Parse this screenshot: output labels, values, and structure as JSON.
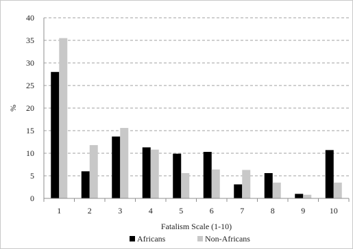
{
  "chart_data": {
    "type": "bar",
    "title": "",
    "xlabel": "Fatalism Scale (1-10)",
    "ylabel": "%",
    "categories": [
      "1",
      "2",
      "3",
      "4",
      "5",
      "6",
      "7",
      "8",
      "9",
      "10"
    ],
    "ylim": [
      0,
      40
    ],
    "yticks": [
      0,
      5,
      10,
      15,
      20,
      25,
      30,
      35,
      40
    ],
    "grid": "horizontal dashed",
    "legend_position": "bottom",
    "series": [
      {
        "name": "Africans",
        "color": "#000000",
        "values": [
          28.0,
          6.0,
          13.7,
          11.3,
          9.9,
          10.3,
          3.1,
          5.6,
          1.0,
          10.7
        ]
      },
      {
        "name": "Non-Africans",
        "color": "#c8c8c8",
        "values": [
          35.5,
          11.8,
          15.6,
          10.8,
          5.6,
          6.4,
          6.3,
          3.5,
          0.8,
          3.5
        ]
      }
    ]
  }
}
